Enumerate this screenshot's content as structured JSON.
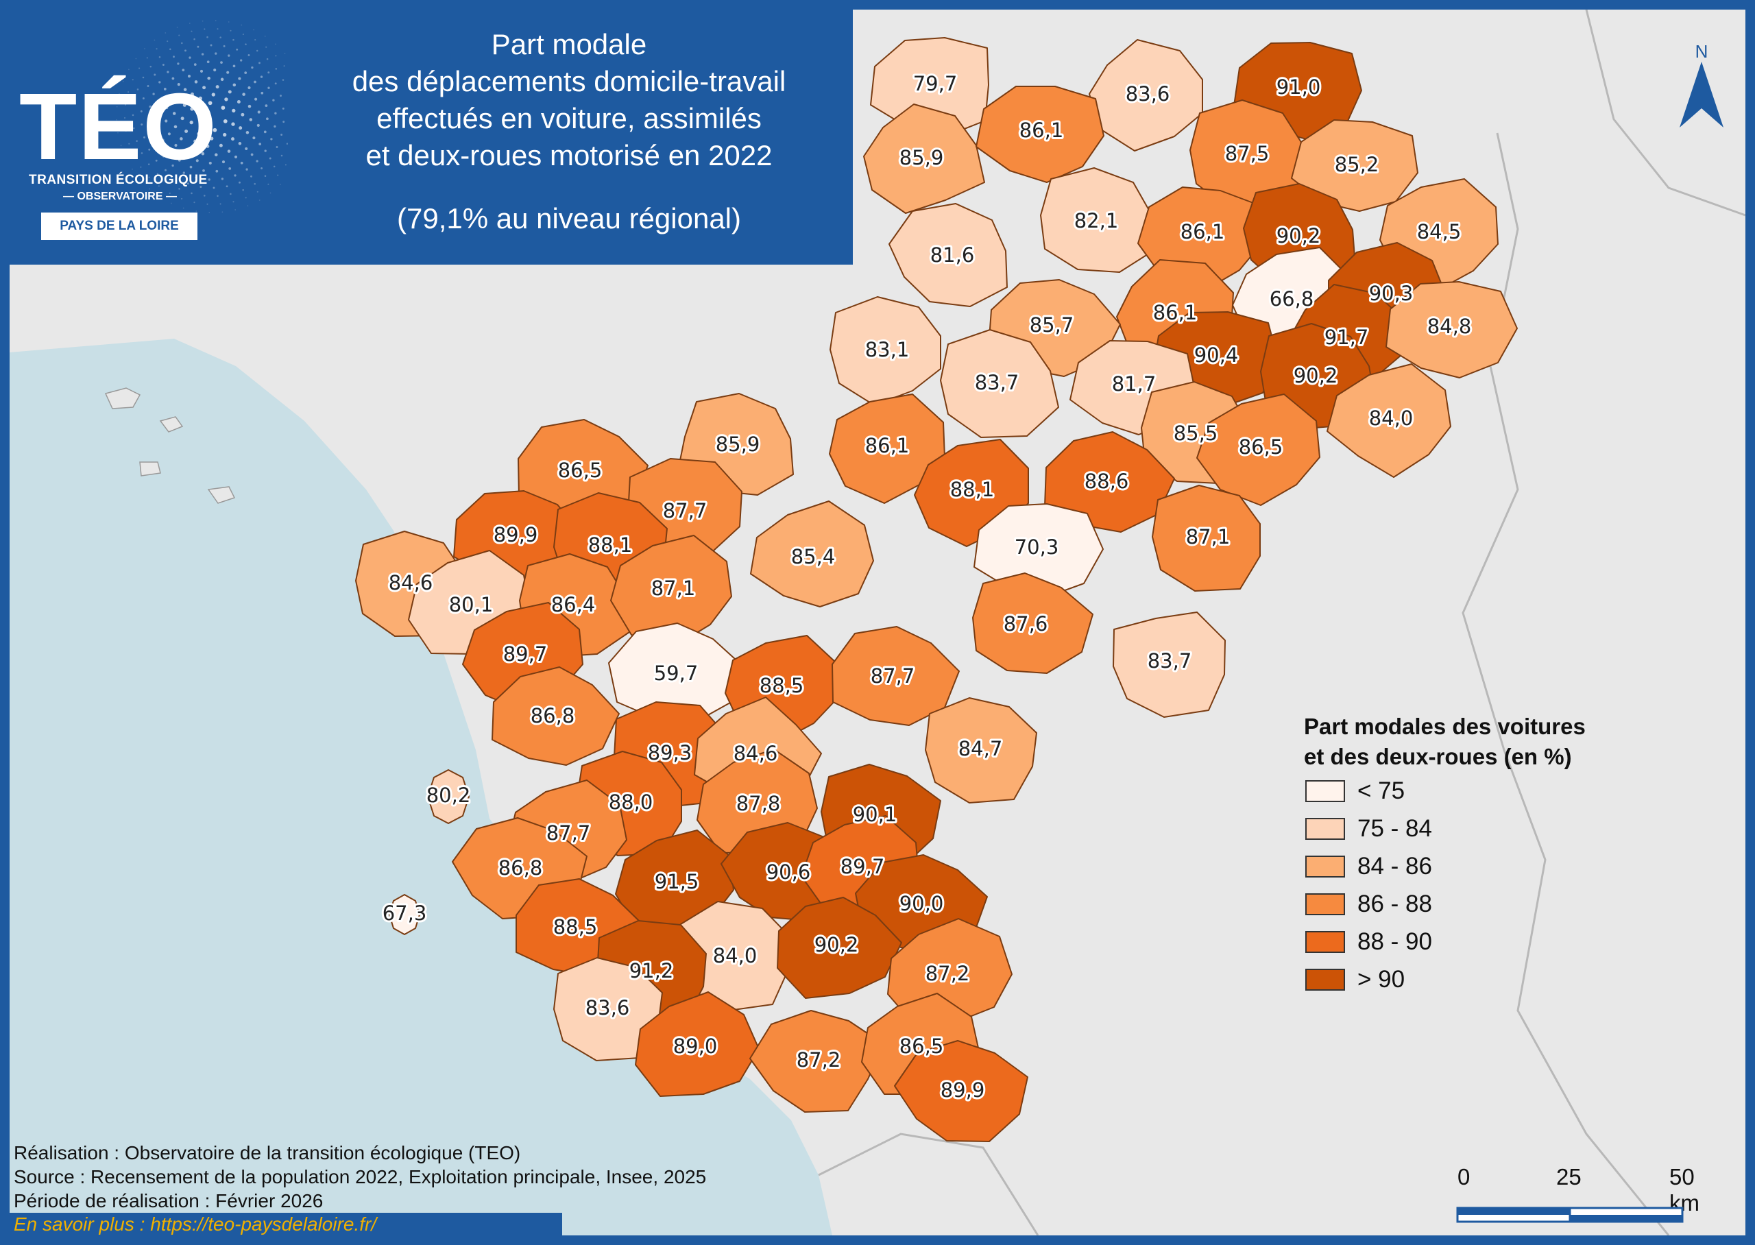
{
  "logo": {
    "word": "TÉO",
    "line1": "TRANSITION ÉCOLOGIQUE",
    "line2": "— OBSERVATOIRE —",
    "region": "PAYS DE LA LOIRE"
  },
  "title": {
    "lines": [
      "Part modale",
      "des déplacements domicile-travail",
      "effectués en voiture, assimilés",
      "et deux-roues motorisé en 2022"
    ],
    "subtitle": "(79,1% au niveau régional)"
  },
  "north_label": "N",
  "legend": {
    "title_line1": "Part modales des voitures",
    "title_line2": "et des deux-roues (en %)",
    "classes": [
      {
        "label": "< 75",
        "color": "#fff3ec"
      },
      {
        "label": "75 - 84",
        "color": "#fdd4b8"
      },
      {
        "label": "84 - 86",
        "color": "#fbae72"
      },
      {
        "label": "86 - 88",
        "color": "#f68a3f"
      },
      {
        "label": "88 - 90",
        "color": "#ec6a1d"
      },
      {
        "label": "> 90",
        "color": "#cc5306"
      }
    ]
  },
  "colors": {
    "frame": "#1e5aa0",
    "sea": "#c9dfe6",
    "land_outside": "#e8e8e8",
    "link": "#f0b000"
  },
  "areas": [
    {
      "value": "79,7",
      "cls": 1
    },
    {
      "value": "83,6",
      "cls": 1
    },
    {
      "value": "91,0",
      "cls": 5
    },
    {
      "value": "85,9",
      "cls": 2
    },
    {
      "value": "86,1",
      "cls": 3
    },
    {
      "value": "87,5",
      "cls": 3
    },
    {
      "value": "85,2",
      "cls": 2
    },
    {
      "value": "82,1",
      "cls": 1
    },
    {
      "value": "86,1",
      "cls": 3
    },
    {
      "value": "90,2",
      "cls": 5
    },
    {
      "value": "84,5",
      "cls": 2
    },
    {
      "value": "81,6",
      "cls": 1
    },
    {
      "value": "66,8",
      "cls": 0
    },
    {
      "value": "90,3",
      "cls": 5
    },
    {
      "value": "86,1",
      "cls": 3
    },
    {
      "value": "85,7",
      "cls": 2
    },
    {
      "value": "91,7",
      "cls": 5
    },
    {
      "value": "84,8",
      "cls": 2
    },
    {
      "value": "83,1",
      "cls": 1
    },
    {
      "value": "90,4",
      "cls": 5
    },
    {
      "value": "83,7",
      "cls": 1
    },
    {
      "value": "81,7",
      "cls": 1
    },
    {
      "value": "90,2",
      "cls": 5
    },
    {
      "value": "84,0",
      "cls": 2
    },
    {
      "value": "85,5",
      "cls": 2
    },
    {
      "value": "86,5",
      "cls": 3
    },
    {
      "value": "85,9",
      "cls": 2
    },
    {
      "value": "86,1",
      "cls": 3
    },
    {
      "value": "86,5",
      "cls": 3
    },
    {
      "value": "88,1",
      "cls": 4
    },
    {
      "value": "88,6",
      "cls": 4
    },
    {
      "value": "87,7",
      "cls": 3
    },
    {
      "value": "89,9",
      "cls": 4
    },
    {
      "value": "88,1",
      "cls": 4
    },
    {
      "value": "70,3",
      "cls": 0
    },
    {
      "value": "87,1",
      "cls": 3
    },
    {
      "value": "85,4",
      "cls": 2
    },
    {
      "value": "84,6",
      "cls": 2
    },
    {
      "value": "80,1",
      "cls": 1
    },
    {
      "value": "86,4",
      "cls": 3
    },
    {
      "value": "87,1",
      "cls": 3
    },
    {
      "value": "87,6",
      "cls": 3
    },
    {
      "value": "89,7",
      "cls": 4
    },
    {
      "value": "59,7",
      "cls": 0
    },
    {
      "value": "88,5",
      "cls": 4
    },
    {
      "value": "87,7",
      "cls": 3
    },
    {
      "value": "83,7",
      "cls": 1
    },
    {
      "value": "86,8",
      "cls": 3
    },
    {
      "value": "89,3",
      "cls": 4
    },
    {
      "value": "84,6",
      "cls": 2
    },
    {
      "value": "84,7",
      "cls": 2
    },
    {
      "value": "80,2",
      "cls": 1
    },
    {
      "value": "88,0",
      "cls": 4
    },
    {
      "value": "87,8",
      "cls": 3
    },
    {
      "value": "90,1",
      "cls": 5
    },
    {
      "value": "87,7",
      "cls": 3
    },
    {
      "value": "86,8",
      "cls": 3
    },
    {
      "value": "91,5",
      "cls": 5
    },
    {
      "value": "90,6",
      "cls": 5
    },
    {
      "value": "89,7",
      "cls": 4
    },
    {
      "value": "90,0",
      "cls": 5
    },
    {
      "value": "67,3",
      "cls": 0
    },
    {
      "value": "88,5",
      "cls": 4
    },
    {
      "value": "84,0",
      "cls": 1
    },
    {
      "value": "90,2",
      "cls": 5
    },
    {
      "value": "91,2",
      "cls": 5
    },
    {
      "value": "87,2",
      "cls": 3
    },
    {
      "value": "83,6",
      "cls": 1
    },
    {
      "value": "89,0",
      "cls": 4
    },
    {
      "value": "87,2",
      "cls": 3
    },
    {
      "value": "86,5",
      "cls": 3
    },
    {
      "value": "89,9",
      "cls": 4
    }
  ],
  "credits": {
    "line1": "Réalisation : Observatoire de la transition écologique (TEO)",
    "line2": "Source : Recensement de la population 2022, Exploitation principale, Insee, 2025",
    "line3": "Période de réalisation : Février 2026",
    "link": "En savoir plus : https://teo-paysdelaloire.fr/"
  },
  "scale": {
    "labels": [
      "0",
      "25",
      "50 km"
    ]
  }
}
